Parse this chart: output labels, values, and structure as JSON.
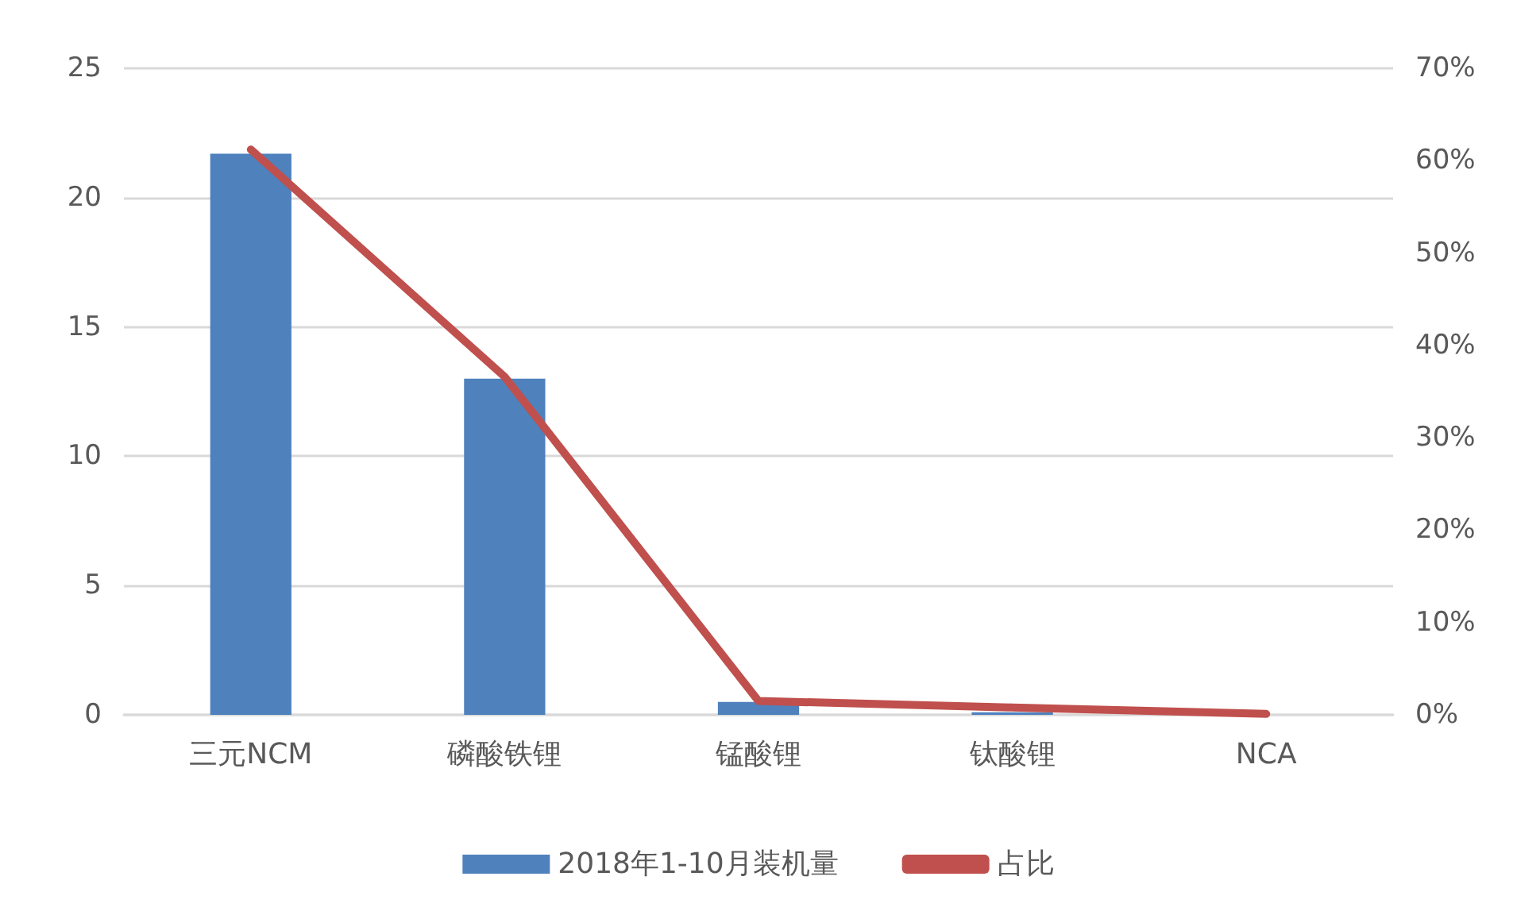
{
  "chart_data": {
    "type": "bar",
    "categories": [
      "三元NCM",
      "磷酸铁锂",
      "锰酸锂",
      "钛酸锂",
      "NCA"
    ],
    "series": [
      {
        "name": "2018年1-10月装机量",
        "color": "#4f81bd",
        "values": [
          21.7,
          13.0,
          0.5,
          0.1,
          0
        ]
      },
      {
        "name": "占比",
        "type": "line",
        "axis": "y2",
        "color": "#c0504d",
        "values": [
          61.2,
          36.6,
          1.5,
          0.8,
          0.1
        ]
      }
    ],
    "ylim": [
      0,
      25
    ],
    "yticks": [
      0,
      5,
      10,
      15,
      20,
      25
    ],
    "y2lim": [
      0,
      70
    ],
    "y2ticks": [
      {
        "value": 0,
        "label": "0%"
      },
      {
        "value": 10,
        "label": "10%"
      },
      {
        "value": 20,
        "label": "20%"
      },
      {
        "value": 30,
        "label": "30%"
      },
      {
        "value": 40,
        "label": "40%"
      },
      {
        "value": 50,
        "label": "50%"
      },
      {
        "value": 60,
        "label": "60%"
      },
      {
        "value": 70,
        "label": "70%"
      }
    ],
    "grid": "y",
    "legend": "bottom",
    "marker": "none",
    "line_style": "solid"
  }
}
